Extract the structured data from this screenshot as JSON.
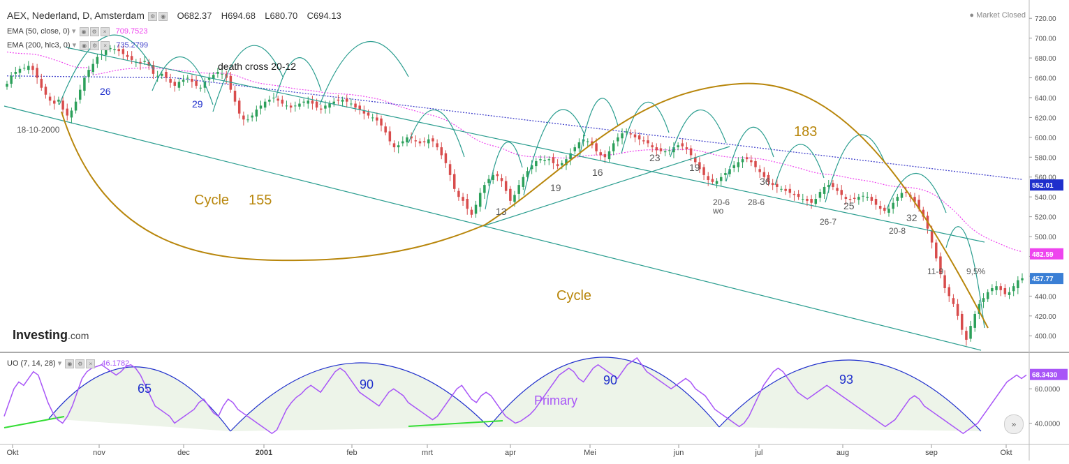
{
  "header": {
    "symbol": "AEX, Nederland, D, Amsterdam",
    "open": "O682.37",
    "high": "H694.68",
    "low": "L680.70",
    "close": "C694.13",
    "ema50_label": "EMA (50, close, 0)",
    "ema50_value": "709.7523",
    "ema200_label": "EMA (200, hlc3, 0)",
    "ema200_value": "735.2799",
    "market_status": "Market Closed",
    "uo_label": "UO (7, 14, 28)",
    "uo_value": "46.1782"
  },
  "logo": {
    "main": "Investing",
    "suffix": ".com"
  },
  "colors": {
    "up": "#2ca05a",
    "down": "#d84c4c",
    "ema50": "#ee44ee",
    "ema200": "#4444cc",
    "cycle": "#b8860b",
    "teal": "#2a9d8f",
    "uo": "#a855f7",
    "arc": "#1f2fcc",
    "green": "#33dd33"
  },
  "chart_data": [
    {
      "type": "candlestick",
      "title": "AEX, Nederland, D, Amsterdam",
      "x_tick_labels": [
        "Okt",
        "nov",
        "dec",
        "2001",
        "feb",
        "mrt",
        "apr",
        "Mei",
        "jun",
        "jul",
        "aug",
        "sep",
        "Okt"
      ],
      "y_tick_labels": [
        "720.00",
        "700.00",
        "680.00",
        "660.00",
        "640.00",
        "620.00",
        "600.00",
        "580.00",
        "560.00",
        "540.00",
        "520.00",
        "500.00",
        "480.00",
        "460.00",
        "440.00",
        "420.00",
        "400.00"
      ],
      "ylim": [
        384,
        730
      ],
      "price_tags": [
        {
          "value": 552.01,
          "label": "552.01",
          "color": "#1f2fcc"
        },
        {
          "value": 482.59,
          "label": "482.59",
          "color": "#ee44ee"
        },
        {
          "value": 457.77,
          "label": "457.77",
          "color": "#3a7fd5"
        }
      ],
      "close_series": [
        654,
        662,
        666,
        669,
        670,
        672,
        668,
        660,
        650,
        643,
        637,
        634,
        638,
        628,
        622,
        627,
        636,
        648,
        660,
        668,
        674,
        681,
        684,
        688,
        690,
        689,
        687,
        684,
        681,
        678,
        676,
        674,
        677,
        672,
        664,
        662,
        664,
        660,
        655,
        652,
        656,
        658,
        660,
        656,
        652,
        650,
        656,
        660,
        663,
        666,
        664,
        660,
        648,
        636,
        624,
        618,
        618,
        622,
        628,
        632,
        636,
        638,
        640,
        637,
        634,
        632,
        630,
        632,
        634,
        636,
        637,
        634,
        630,
        628,
        632,
        634,
        636,
        637,
        638,
        636,
        634,
        630,
        628,
        624,
        622,
        620,
        617,
        612,
        605,
        596,
        590,
        592,
        596,
        600,
        599,
        596,
        594,
        595,
        598,
        596,
        590,
        582,
        574,
        562,
        548,
        540,
        536,
        528,
        522,
        532,
        544,
        552,
        558,
        562,
        561,
        556,
        546,
        536,
        542,
        552,
        560,
        566,
        572,
        576,
        578,
        577,
        578,
        574,
        571,
        574,
        578,
        584,
        590,
        595,
        598,
        596,
        592,
        586,
        582,
        580,
        586,
        594,
        600,
        604,
        606,
        603,
        600,
        598,
        596,
        594,
        590,
        587,
        586,
        586,
        587,
        590,
        592,
        591,
        588,
        582,
        575,
        568,
        562,
        557,
        555,
        556,
        560,
        564,
        568,
        572,
        575,
        578,
        578,
        575,
        570,
        565,
        560,
        555,
        552,
        550,
        548,
        546,
        544,
        542,
        540,
        538,
        536,
        534,
        538,
        545,
        550,
        552,
        550,
        546,
        542,
        538,
        537,
        538,
        540,
        541,
        540,
        536,
        532,
        528,
        526,
        528,
        534,
        540,
        544,
        544,
        540,
        535,
        528,
        520,
        508,
        494,
        478,
        462,
        448,
        440,
        432,
        420,
        406,
        396,
        410,
        422,
        432,
        438,
        444,
        448,
        450,
        446,
        442,
        444,
        450,
        456,
        458
      ],
      "ema50_label_value": "709.7523",
      "ema200_label_value": "735.2799",
      "annotations": [
        {
          "text": "18-10-2000",
          "color": "#555"
        },
        {
          "text": "26",
          "color": "#1f2fcc"
        },
        {
          "text": "29",
          "color": "#1f2fcc"
        },
        {
          "text": "death cross 20-12",
          "color": "#111"
        },
        {
          "text": "Cycle",
          "color": "#b8860b"
        },
        {
          "text": "155",
          "color": "#b8860b"
        },
        {
          "text": "Cycle",
          "color": "#b8860b"
        },
        {
          "text": "183",
          "color": "#b8860b"
        },
        {
          "text": "13",
          "color": "#555"
        },
        {
          "text": "19",
          "color": "#555"
        },
        {
          "text": "16",
          "color": "#555"
        },
        {
          "text": "23",
          "color": "#555"
        },
        {
          "text": "19",
          "color": "#555"
        },
        {
          "text": "20-6",
          "color": "#555"
        },
        {
          "text": "wo",
          "color": "#555"
        },
        {
          "text": "28-6",
          "color": "#555"
        },
        {
          "text": "36",
          "color": "#555"
        },
        {
          "text": "25",
          "color": "#555"
        },
        {
          "text": "26-7",
          "color": "#555"
        },
        {
          "text": "32",
          "color": "#555"
        },
        {
          "text": "20-8",
          "color": "#555"
        },
        {
          "text": "11-9",
          "color": "#555"
        },
        {
          "text": "9,5%",
          "color": "#555"
        }
      ]
    },
    {
      "type": "line",
      "title": "UO (7, 14, 28)",
      "y_tick_labels": [
        "60.0000",
        "40.0000"
      ],
      "ylim": [
        28,
        80
      ],
      "price_tag": {
        "value": 68.343,
        "label": "68.3430"
      },
      "values": [
        44,
        52,
        60,
        64,
        62,
        66,
        70,
        68,
        60,
        52,
        46,
        42,
        40,
        44,
        50,
        58,
        66,
        70,
        72,
        73,
        74,
        72,
        70,
        68,
        70,
        73,
        74,
        72,
        68,
        62,
        56,
        50,
        48,
        46,
        44,
        40,
        42,
        44,
        46,
        48,
        52,
        54,
        50,
        46,
        44,
        50,
        54,
        52,
        48,
        46,
        44,
        42,
        40,
        38,
        36,
        34,
        36,
        42,
        48,
        52,
        55,
        57,
        60,
        62,
        60,
        58,
        62,
        66,
        70,
        72,
        70,
        66,
        62,
        58,
        56,
        54,
        52,
        50,
        54,
        58,
        60,
        58,
        56,
        52,
        50,
        48,
        46,
        44,
        42,
        44,
        48,
        52,
        56,
        60,
        62,
        58,
        54,
        52,
        56,
        58,
        56,
        52,
        48,
        44,
        42,
        40,
        41,
        43,
        45,
        48,
        52,
        56,
        60,
        64,
        68,
        70,
        72,
        70,
        66,
        64,
        68,
        72,
        74,
        72,
        70,
        68,
        66,
        70,
        74,
        76,
        78,
        74,
        70,
        68,
        66,
        64,
        62,
        60,
        62,
        64,
        66,
        64,
        60,
        58,
        56,
        52,
        48,
        46,
        44,
        42,
        40,
        38,
        40,
        44,
        50,
        56,
        62,
        66,
        70,
        72,
        70,
        66,
        62,
        58,
        56,
        54,
        56,
        58,
        60,
        62,
        60,
        58,
        56,
        54,
        52,
        50,
        48,
        46,
        44,
        42,
        40,
        38,
        40,
        42,
        46,
        50,
        54,
        56,
        54,
        50,
        48,
        46,
        44,
        42,
        40,
        38,
        36,
        34,
        36,
        38,
        40,
        44,
        48,
        52,
        56,
        60,
        64,
        66,
        68,
        66,
        68
      ],
      "annotations": [
        {
          "text": "65",
          "color": "#1f2fcc"
        },
        {
          "text": "90",
          "color": "#1f2fcc"
        },
        {
          "text": "Primary",
          "color": "#a855f7"
        },
        {
          "text": "90",
          "color": "#1f2fcc"
        },
        {
          "text": "93",
          "color": "#1f2fcc"
        }
      ]
    }
  ]
}
